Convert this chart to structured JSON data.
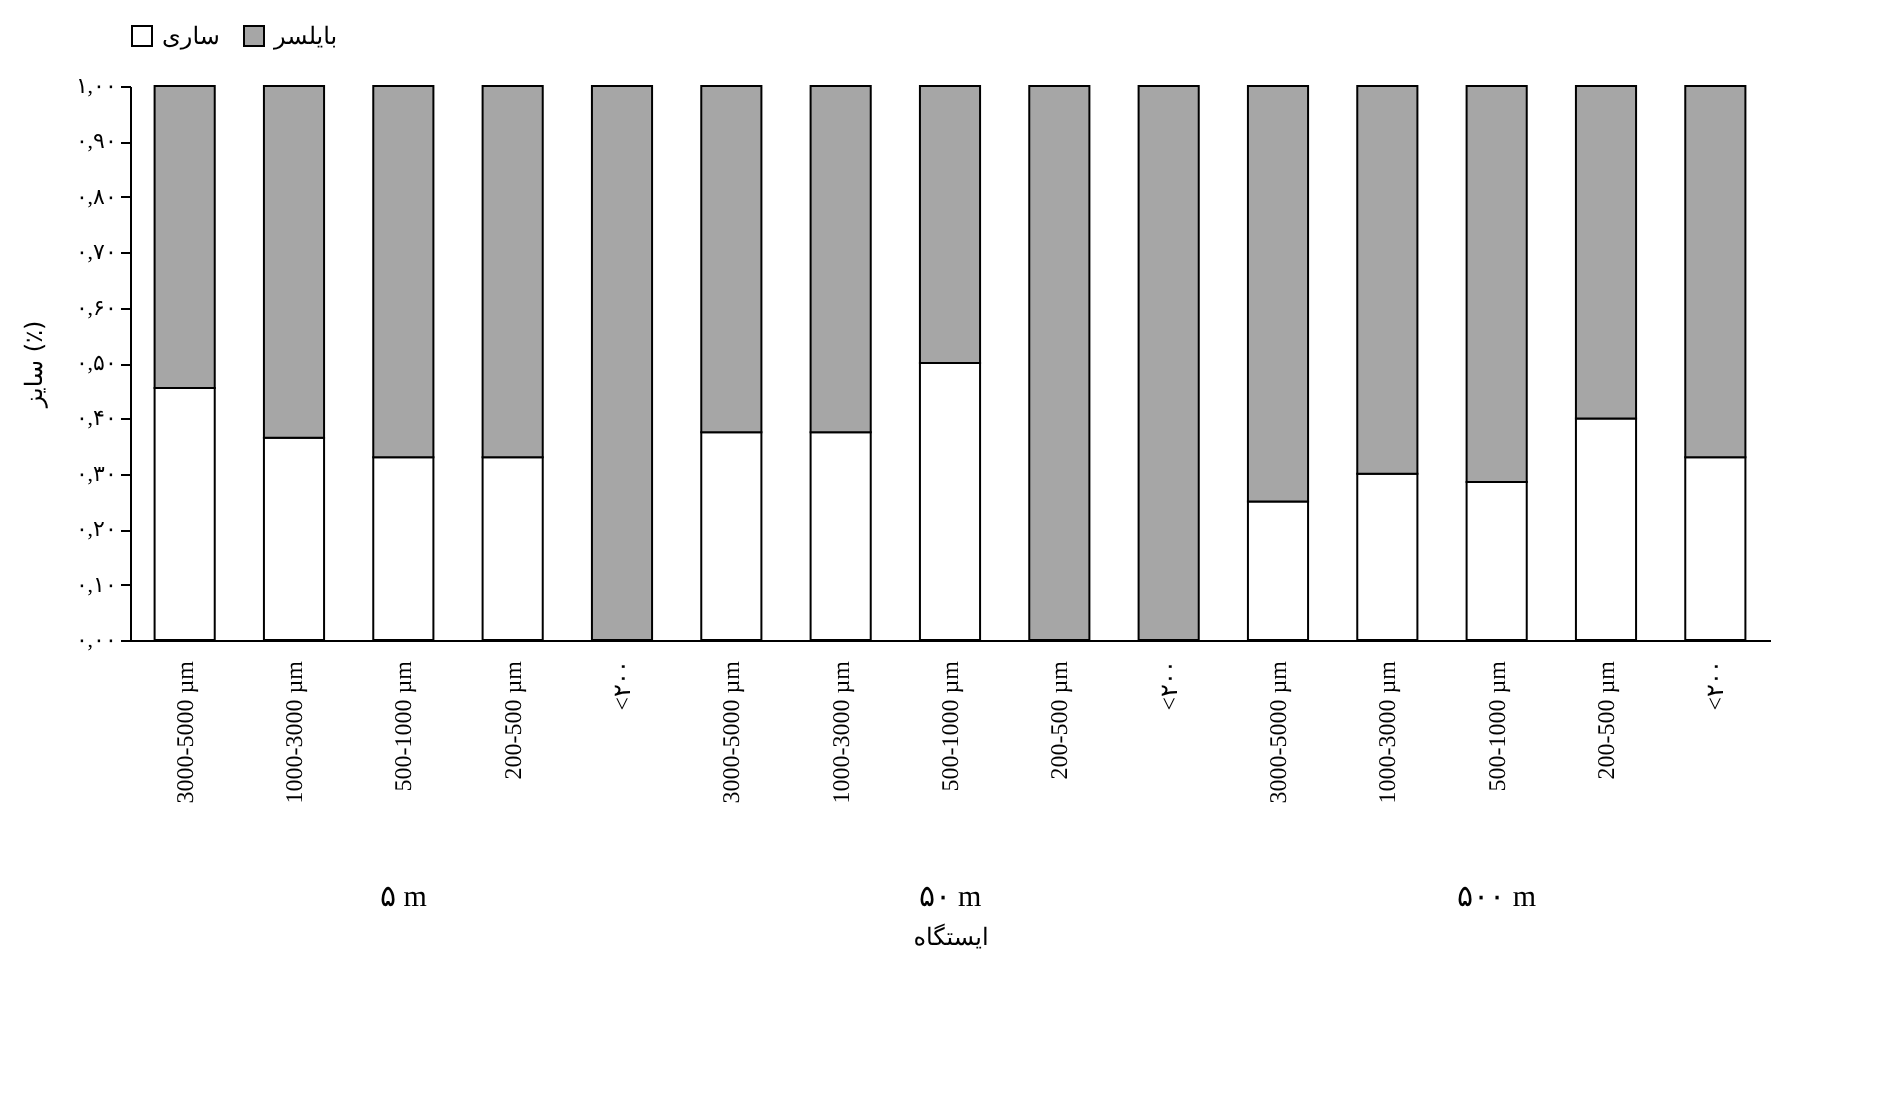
{
  "chart_data": {
    "type": "bar",
    "stacked": true,
    "ylabel": "سایز (٪)",
    "xlabel": "ایستگاه",
    "legend": "top",
    "categories": [
      "3000-5000 µm",
      "1000-3000 µm",
      "500-1000 µm",
      "200-500 µm",
      "<۲۰۰",
      "3000-5000 µm",
      "1000-3000 µm",
      "500-1000 µm",
      "200-500 µm",
      "<۲۰۰",
      "3000-5000 µm",
      "1000-3000 µm",
      "500-1000 µm",
      "200-500 µm",
      "<۲۰۰"
    ],
    "series": [
      {
        "name": "ساری",
        "color": "#ffffff",
        "values": [
          0.455,
          0.365,
          0.33,
          0.33,
          0,
          0.375,
          0.375,
          0.5,
          0,
          0,
          0.25,
          0.3,
          0.285,
          0.4,
          0.33
        ]
      },
      {
        "name": "بایلسر",
        "color": "#a6a6a6",
        "values": [
          0.545,
          0.635,
          0.67,
          0.67,
          1,
          0.625,
          0.625,
          0.5,
          1,
          1,
          0.75,
          0.7,
          0.715,
          0.6,
          0.67
        ]
      }
    ],
    "ylim": [
      0,
      1
    ],
    "yticks": [
      {
        "value": 0,
        "label": "۰,۰۰"
      },
      {
        "value": 0.1,
        "label": "۰,۱۰"
      },
      {
        "value": 0.2,
        "label": "۰,۲۰"
      },
      {
        "value": 0.3,
        "label": "۰,۳۰"
      },
      {
        "value": 0.4,
        "label": "۰,۴۰"
      },
      {
        "value": 0.5,
        "label": "۰,۵۰"
      },
      {
        "value": 0.6,
        "label": "۰,۶۰"
      },
      {
        "value": 0.7,
        "label": "۰,۷۰"
      },
      {
        "value": 0.8,
        "label": "۰,۸۰"
      },
      {
        "value": 0.9,
        "label": "۰,۹۰"
      },
      {
        "value": 1,
        "label": "۱,۰۰"
      }
    ],
    "annotations": [
      "۵ m",
      "۵۰ m",
      "۵۰۰ m"
    ]
  }
}
